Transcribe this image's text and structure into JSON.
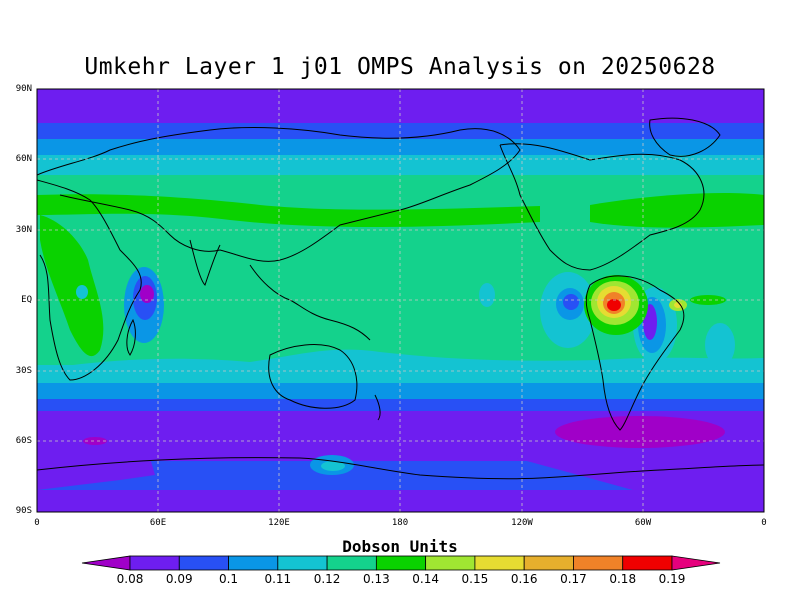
{
  "title": "Umkehr Layer 1 j01 OMPS Analysis on 20250628",
  "y_ticks": [
    "90N",
    "60N",
    "30N",
    "EQ",
    "30S",
    "60S",
    "90S"
  ],
  "x_ticks": [
    "0",
    "60E",
    "120E",
    "180",
    "120W",
    "60W",
    "0"
  ],
  "colorbar": {
    "title": "Dobson Units",
    "labels": [
      "0.08",
      "0.09",
      "0.1",
      "0.11",
      "0.12",
      "0.13",
      "0.14",
      "0.15",
      "0.16",
      "0.17",
      "0.18",
      "0.19"
    ],
    "colors": [
      "#a000c8",
      "#6e1ef0",
      "#2850f5",
      "#0a96e6",
      "#14c3d2",
      "#14d28c",
      "#0ad200",
      "#a0e632",
      "#e6dc32",
      "#e6af2d",
      "#f08228",
      "#f00000",
      "#e6007d"
    ]
  }
}
